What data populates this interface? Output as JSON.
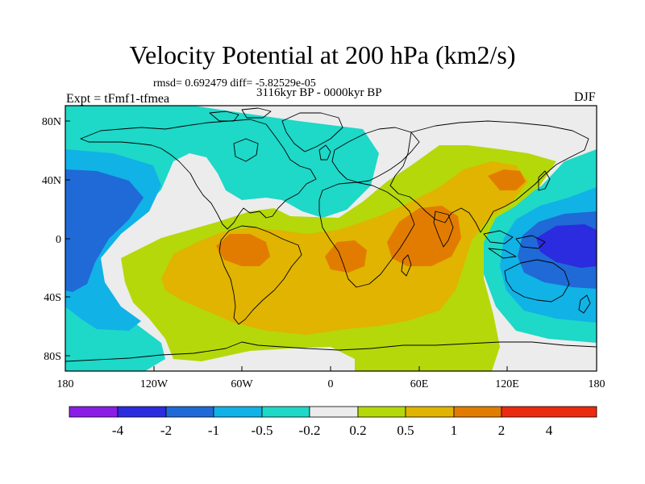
{
  "title": "Velocity Potential at 200 hPa (km2/s)",
  "stats": "rmsd= 0.692479  diff= -5.82529e-05",
  "period": "3116kyr BP - 0000kyr BP",
  "experiment": "Expt = tFmf1-tfmea",
  "season": "DJF",
  "axes": {
    "lon_ticks": [
      "180",
      "120W",
      "60W",
      "0",
      "60E",
      "120E",
      "180"
    ],
    "lat_ticks": [
      "80N",
      "40N",
      "0",
      "40S",
      "80S"
    ]
  },
  "colorbar": {
    "colors": [
      "#8a1ee6",
      "#2b2be0",
      "#1f6ad6",
      "#11b2e6",
      "#1ed8c8",
      "#ececec",
      "#b5d80a",
      "#e0b400",
      "#e27c00",
      "#ec2a10"
    ],
    "labels": [
      "-4",
      "-2",
      "-1",
      "-0.5",
      "-0.2",
      "0.2",
      "0.5",
      "1",
      "2",
      "4"
    ]
  },
  "palette": {
    "ocean_base": "#ececec",
    "coast": "#000000"
  }
}
